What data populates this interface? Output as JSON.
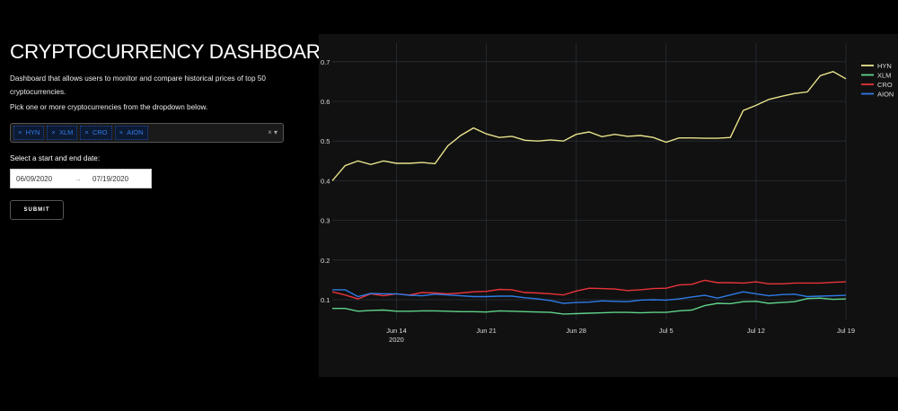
{
  "header": {
    "title": "CRYPTOCURRENCY DASHBOARD",
    "description": "Dashboard that allows users to monitor and compare historical prices of top 50 cryptocurrencies.",
    "instruction": "Pick one or more cryptocurrencies from the dropdown below."
  },
  "dropdown": {
    "selected": [
      "HYN",
      "XLM",
      "CRO",
      "AION"
    ],
    "remove_glyph": "×",
    "clear_glyph": "×",
    "arrow_glyph": "▾"
  },
  "date_picker": {
    "label": "Select a start and end date:",
    "start": "06/09/2020",
    "end": "07/19/2020",
    "arrow": "→"
  },
  "submit_label": "SUBMIT",
  "chart_data": {
    "type": "line",
    "x_start": "2020-06-09",
    "x_end": "2020-07-19",
    "xticks": [
      {
        "label": "Jun 14",
        "sub": "2020",
        "day": 5
      },
      {
        "label": "Jun 21",
        "day": 12
      },
      {
        "label": "Jun 28",
        "day": 19
      },
      {
        "label": "Jul 5",
        "day": 26
      },
      {
        "label": "Jul 12",
        "day": 33
      },
      {
        "label": "Jul 19",
        "day": 40
      }
    ],
    "yticks": [
      "0.1",
      "0.2",
      "0.3",
      "0.4",
      "0.5",
      "0.6",
      "0.7"
    ],
    "ylim": [
      0.04,
      0.72
    ],
    "grid": true,
    "legend": "top-right",
    "series": [
      {
        "name": "HYN",
        "color": "#e8e38c",
        "values": [
          0.4,
          0.438,
          0.45,
          0.441,
          0.45,
          0.444,
          0.444,
          0.446,
          0.443,
          0.488,
          0.514,
          0.533,
          0.518,
          0.509,
          0.512,
          0.502,
          0.5,
          0.503,
          0.5,
          0.517,
          0.523,
          0.511,
          0.517,
          0.512,
          0.514,
          0.509,
          0.497,
          0.508,
          0.508,
          0.507,
          0.507,
          0.509,
          0.577,
          0.59,
          0.605,
          0.613,
          0.62,
          0.624,
          0.665,
          0.675,
          0.657
        ]
      },
      {
        "name": "XLM",
        "color": "#5fd38a",
        "values": [
          0.078,
          0.078,
          0.071,
          0.073,
          0.074,
          0.071,
          0.071,
          0.072,
          0.072,
          0.071,
          0.07,
          0.07,
          0.069,
          0.072,
          0.071,
          0.07,
          0.069,
          0.068,
          0.064,
          0.065,
          0.066,
          0.067,
          0.068,
          0.068,
          0.067,
          0.068,
          0.068,
          0.072,
          0.074,
          0.085,
          0.091,
          0.09,
          0.095,
          0.096,
          0.091,
          0.093,
          0.095,
          0.103,
          0.104,
          0.101,
          0.102
        ]
      },
      {
        "name": "CRO",
        "color": "#e8333a",
        "values": [
          0.12,
          0.112,
          0.102,
          0.115,
          0.11,
          0.115,
          0.112,
          0.118,
          0.117,
          0.115,
          0.117,
          0.12,
          0.121,
          0.126,
          0.125,
          0.118,
          0.117,
          0.115,
          0.112,
          0.122,
          0.129,
          0.128,
          0.127,
          0.123,
          0.125,
          0.128,
          0.129,
          0.137,
          0.139,
          0.149,
          0.143,
          0.143,
          0.142,
          0.145,
          0.14,
          0.14,
          0.142,
          0.142,
          0.142,
          0.144,
          0.145
        ]
      },
      {
        "name": "AION",
        "color": "#2f7be8",
        "values": [
          0.125,
          0.125,
          0.108,
          0.116,
          0.115,
          0.115,
          0.111,
          0.11,
          0.114,
          0.112,
          0.11,
          0.108,
          0.108,
          0.109,
          0.109,
          0.105,
          0.102,
          0.098,
          0.091,
          0.093,
          0.094,
          0.097,
          0.096,
          0.095,
          0.099,
          0.1,
          0.099,
          0.102,
          0.107,
          0.111,
          0.104,
          0.112,
          0.12,
          0.115,
          0.11,
          0.113,
          0.114,
          0.108,
          0.109,
          0.11,
          0.111
        ]
      }
    ]
  }
}
